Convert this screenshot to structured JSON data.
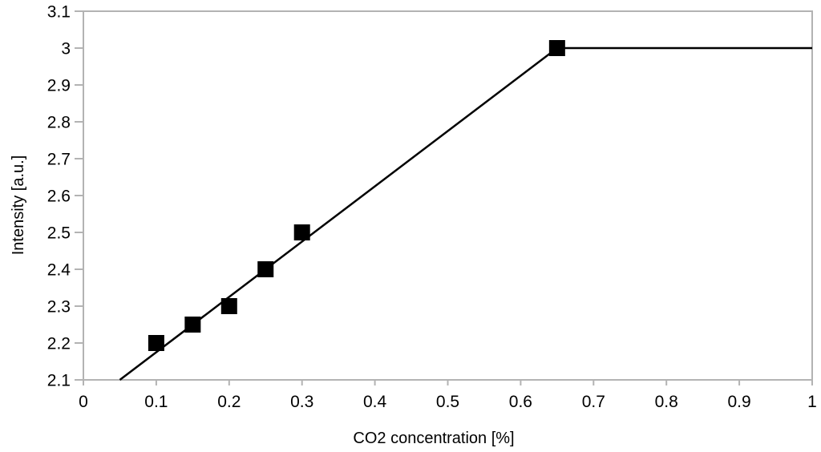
{
  "chart_data": {
    "type": "scatter",
    "title": "",
    "xlabel": "CO2 concentration [%]",
    "ylabel": "Intensity [a.u.]",
    "xlim": [
      0,
      1
    ],
    "ylim": [
      2.1,
      3.1
    ],
    "x_ticks": [
      0,
      0.1,
      0.2,
      0.3,
      0.4,
      0.5,
      0.6,
      0.7,
      0.8,
      0.9,
      1
    ],
    "x_tick_labels": [
      "0",
      "0.1",
      "0.2",
      "0.3",
      "0.4",
      "0.5",
      "0.6",
      "0.7",
      "0.8",
      "0.9",
      "1"
    ],
    "y_ticks": [
      2.1,
      2.2,
      2.3,
      2.4,
      2.5,
      2.6,
      2.7,
      2.8,
      2.9,
      3.0,
      3.1
    ],
    "y_tick_labels": [
      "2.1",
      "2.2",
      "2.3",
      "2.4",
      "2.5",
      "2.6",
      "2.7",
      "2.8",
      "2.9",
      "3",
      "3.1"
    ],
    "grid": false,
    "legend": "none",
    "marker": "filled-square",
    "points": [
      {
        "x": 0.1,
        "y": 2.2
      },
      {
        "x": 0.15,
        "y": 2.25
      },
      {
        "x": 0.2,
        "y": 2.3
      },
      {
        "x": 0.25,
        "y": 2.4
      },
      {
        "x": 0.3,
        "y": 2.5
      },
      {
        "x": 0.65,
        "y": 3.0
      }
    ],
    "fit_line": [
      {
        "x": 0.05,
        "y": 2.1
      },
      {
        "x": 0.65,
        "y": 3.0
      },
      {
        "x": 1.0,
        "y": 3.0
      }
    ],
    "colors": {
      "marker": "#000000",
      "line": "#000000",
      "axis": "#b3b3b3",
      "text": "#000000",
      "background": "#ffffff"
    }
  }
}
